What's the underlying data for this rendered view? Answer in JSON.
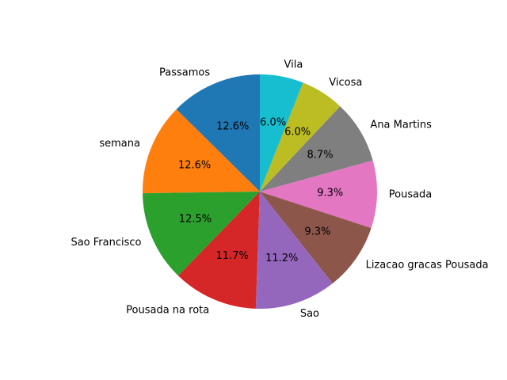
{
  "chart_data": {
    "type": "pie",
    "title": "",
    "start_angle_deg": 90,
    "direction": "counterclockwise",
    "slices": [
      {
        "label": "Passamos",
        "value": 12.6,
        "pct_label": "12.6%",
        "color": "#1f77b4"
      },
      {
        "label": "semana",
        "value": 12.6,
        "pct_label": "12.6%",
        "color": "#ff7f0e"
      },
      {
        "label": "Sao Francisco",
        "value": 12.5,
        "pct_label": "12.5%",
        "color": "#2ca02c"
      },
      {
        "label": "Pousada na rota",
        "value": 11.7,
        "pct_label": "11.7%",
        "color": "#d62728"
      },
      {
        "label": "Sao",
        "value": 11.2,
        "pct_label": "11.2%",
        "color": "#9467bd"
      },
      {
        "label": "Lizacao gracas Pousada",
        "value": 9.3,
        "pct_label": "9.3%",
        "color": "#8c564b"
      },
      {
        "label": "Pousada",
        "value": 9.3,
        "pct_label": "9.3%",
        "color": "#e377c2"
      },
      {
        "label": "Ana Martins",
        "value": 8.7,
        "pct_label": "8.7%",
        "color": "#7f7f7f"
      },
      {
        "label": "Vicosa",
        "value": 6.0,
        "pct_label": "6.0%",
        "color": "#bcbd22"
      },
      {
        "label": "Vila",
        "value": 6.0,
        "pct_label": "6.0%",
        "color": "#17becf"
      }
    ]
  }
}
